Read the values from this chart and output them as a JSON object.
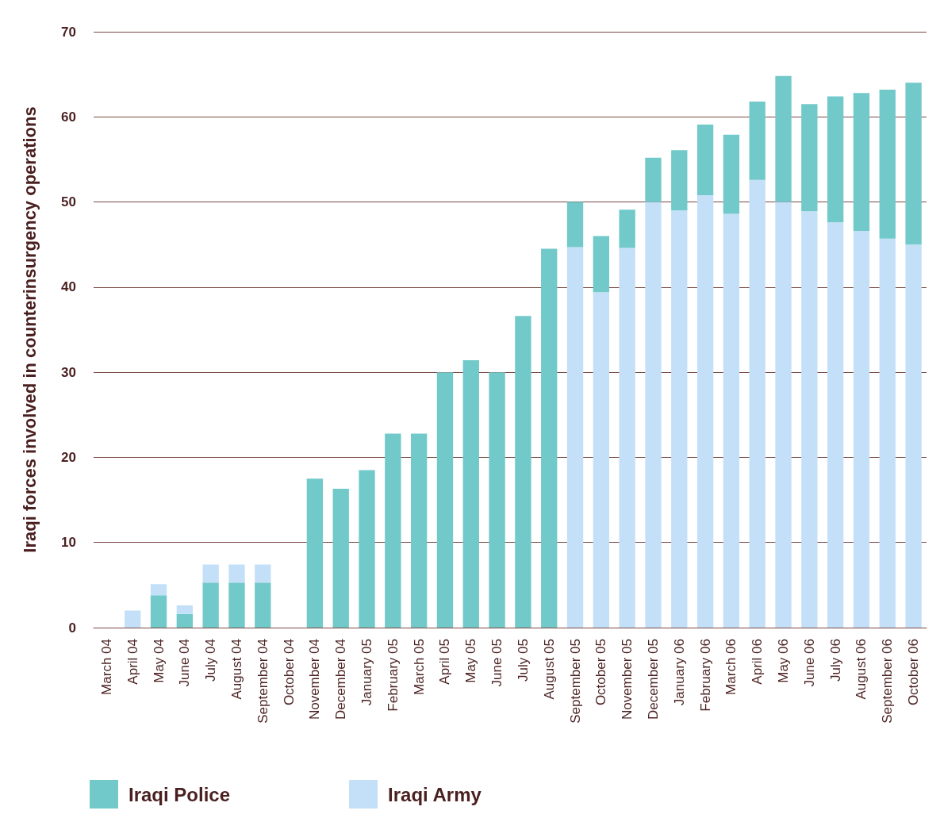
{
  "chart_data": {
    "type": "bar",
    "stacked": true,
    "ylabel": "Iraqi forces involved in counterinsurgency operations",
    "categories": [
      "March 04",
      "April 04",
      "May 04",
      "June 04",
      "July 04",
      "August 04",
      "September 04",
      "October 04",
      "November 04",
      "December 04",
      "January 05",
      "February 05",
      "March 05",
      "April 05",
      "May 05",
      "June 05",
      "July 05",
      "August 05",
      "September 05",
      "October 05",
      "November 05",
      "December 05",
      "January 06",
      "February 06",
      "March 06",
      "April 06",
      "May 06",
      "June 06",
      "July 06",
      "August 06",
      "September 06",
      "October 06"
    ],
    "series": [
      {
        "name": "Iraqi Army",
        "color": "#c4e0f8",
        "values": [
          null,
          null,
          null,
          null,
          null,
          null,
          null,
          null,
          null,
          null,
          null,
          null,
          null,
          null,
          null,
          null,
          null,
          null,
          44.7,
          39.4,
          44.6,
          50,
          49.0,
          50.8,
          48.6,
          52.6,
          50.0,
          48.9,
          47.6,
          46.6,
          45.7,
          45.0
        ]
      },
      {
        "name": "Iraqi Police",
        "color": "#72c9c9",
        "values": [
          null,
          null,
          3.8,
          1.6,
          5.3,
          5.3,
          5.3,
          null,
          17.5,
          16.3,
          18.5,
          22.8,
          22.8,
          30,
          31.4,
          30,
          36.6,
          44.5,
          5.3,
          6.6,
          4.5,
          5.2,
          7.1,
          8.3,
          9.3,
          9.2,
          14.8,
          12.6,
          14.8,
          16.2,
          17.5,
          19.0
        ]
      },
      {
        "color": "#c4e0f8",
        "values": [
          null,
          2,
          1.3,
          1.0,
          2.1,
          2.1,
          2.1,
          null,
          null,
          null,
          null,
          null,
          null,
          null,
          null,
          null,
          null,
          null,
          null,
          null,
          null,
          null,
          null,
          null,
          null,
          null,
          null,
          null,
          null,
          null,
          null,
          null
        ]
      }
    ],
    "ylim": [
      0,
      70
    ],
    "yticks": [
      0,
      10,
      20,
      30,
      40,
      50,
      60,
      70
    ],
    "grid": "y",
    "legend": "bottom left"
  }
}
